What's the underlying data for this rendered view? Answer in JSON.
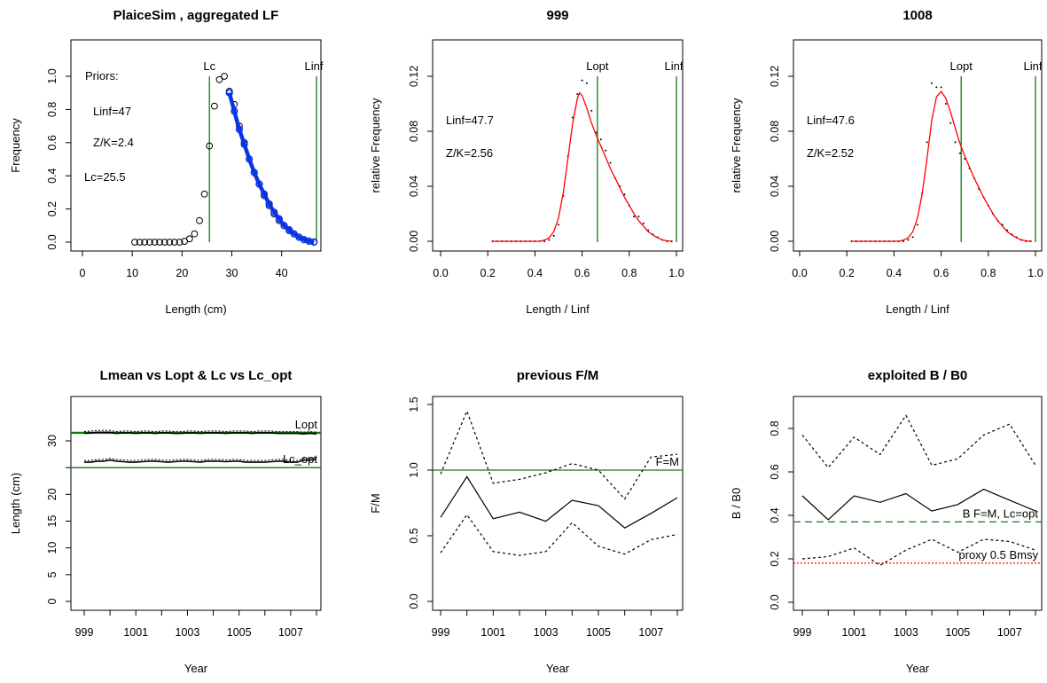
{
  "chart_data": [
    {
      "id": "lf",
      "type": "scatter",
      "title": "PlaiceSim , aggregated LF",
      "xlabel": "Length (cm)",
      "ylabel": "Frequency",
      "xlim": [
        0,
        47.5
      ],
      "ylim": [
        0,
        1.08
      ],
      "xticks": [
        0,
        10,
        20,
        30,
        40
      ],
      "yticks": [
        0.0,
        0.2,
        0.4,
        0.6,
        0.8,
        1.0
      ],
      "annotations": [
        "Priors:",
        "Linf=47",
        "Z/K=2.4",
        "Lc=25.5"
      ],
      "vlines": [
        {
          "x": 25.5,
          "label": "Lc"
        },
        {
          "x": 47,
          "label": "Linf"
        }
      ],
      "points": [
        [
          10.5,
          0
        ],
        [
          11.5,
          0
        ],
        [
          12.5,
          0
        ],
        [
          13.5,
          0
        ],
        [
          14.5,
          0
        ],
        [
          15.5,
          0
        ],
        [
          16.5,
          0
        ],
        [
          17.5,
          0
        ],
        [
          18.5,
          0
        ],
        [
          19.5,
          0
        ],
        [
          20.5,
          0.005
        ],
        [
          21.5,
          0.02
        ],
        [
          22.5,
          0.05
        ],
        [
          23.5,
          0.13
        ],
        [
          24.5,
          0.29
        ],
        [
          25.5,
          0.58
        ],
        [
          26.5,
          0.82
        ],
        [
          27.5,
          0.98
        ],
        [
          28.5,
          1.0
        ],
        [
          29.5,
          0.91
        ],
        [
          30.5,
          0.83
        ],
        [
          31.5,
          0.7
        ],
        [
          32.5,
          0.6
        ],
        [
          33.5,
          0.5
        ],
        [
          34.5,
          0.42
        ],
        [
          35.5,
          0.35
        ],
        [
          36.5,
          0.28
        ],
        [
          37.5,
          0.22
        ],
        [
          38.5,
          0.17
        ],
        [
          39.5,
          0.13
        ],
        [
          40.5,
          0.1
        ],
        [
          41.5,
          0.07
        ],
        [
          42.5,
          0.05
        ],
        [
          43.5,
          0.03
        ],
        [
          44.5,
          0.015
        ],
        [
          45.5,
          0.005
        ],
        [
          46.5,
          0.002
        ]
      ],
      "fit": [
        [
          29.5,
          0.9
        ],
        [
          30.5,
          0.79
        ],
        [
          31.5,
          0.68
        ],
        [
          32.5,
          0.59
        ],
        [
          33.5,
          0.5
        ],
        [
          34.5,
          0.42
        ],
        [
          35.5,
          0.35
        ],
        [
          36.5,
          0.29
        ],
        [
          37.5,
          0.23
        ],
        [
          38.5,
          0.18
        ],
        [
          39.5,
          0.14
        ],
        [
          40.5,
          0.1
        ],
        [
          41.5,
          0.075
        ],
        [
          42.5,
          0.05
        ],
        [
          43.5,
          0.03
        ],
        [
          44.5,
          0.015
        ],
        [
          45.5,
          0.006
        ],
        [
          46.5,
          0.0
        ]
      ]
    },
    {
      "id": "r999",
      "type": "line",
      "title": "999",
      "xlabel": "Length / Linf",
      "ylabel": "relative Frequency",
      "xlim": [
        -0.02,
        1.02
      ],
      "ylim": [
        -0.002,
        0.14
      ],
      "xticks": [
        0.0,
        0.2,
        0.4,
        0.6,
        0.8,
        1.0
      ],
      "yticks": [
        0.0,
        0.04,
        0.08,
        0.12
      ],
      "annotations": [
        "Linf=47.7",
        "Z/K=2.56"
      ],
      "vlines": [
        {
          "x": 0.665,
          "label": "Lopt"
        },
        {
          "x": 1.0,
          "label": "Linf"
        }
      ],
      "points": [
        [
          0.22,
          0
        ],
        [
          0.24,
          0
        ],
        [
          0.26,
          0
        ],
        [
          0.28,
          0
        ],
        [
          0.3,
          0
        ],
        [
          0.32,
          0
        ],
        [
          0.34,
          0
        ],
        [
          0.36,
          0
        ],
        [
          0.38,
          0
        ],
        [
          0.4,
          0
        ],
        [
          0.42,
          0
        ],
        [
          0.44,
          0
        ],
        [
          0.46,
          0.001
        ],
        [
          0.48,
          0.004
        ],
        [
          0.5,
          0.012
        ],
        [
          0.52,
          0.033
        ],
        [
          0.54,
          0.062
        ],
        [
          0.56,
          0.09
        ],
        [
          0.58,
          0.107
        ],
        [
          0.6,
          0.117
        ],
        [
          0.62,
          0.115
        ],
        [
          0.64,
          0.095
        ],
        [
          0.66,
          0.079
        ],
        [
          0.68,
          0.074
        ],
        [
          0.7,
          0.066
        ],
        [
          0.72,
          0.057
        ],
        [
          0.74,
          0.046
        ],
        [
          0.76,
          0.04
        ],
        [
          0.78,
          0.034
        ],
        [
          0.8,
          0.026
        ],
        [
          0.82,
          0.018
        ],
        [
          0.84,
          0.018
        ],
        [
          0.86,
          0.013
        ],
        [
          0.88,
          0.008
        ],
        [
          0.9,
          0.005
        ],
        [
          0.92,
          0.003
        ],
        [
          0.94,
          0.001
        ],
        [
          0.96,
          0
        ],
        [
          0.98,
          0
        ]
      ],
      "fit": [
        [
          0.22,
          0
        ],
        [
          0.3,
          0
        ],
        [
          0.38,
          0
        ],
        [
          0.42,
          0
        ],
        [
          0.44,
          0.0008
        ],
        [
          0.46,
          0.0025
        ],
        [
          0.48,
          0.007
        ],
        [
          0.5,
          0.017
        ],
        [
          0.52,
          0.035
        ],
        [
          0.54,
          0.06
        ],
        [
          0.56,
          0.086
        ],
        [
          0.58,
          0.104
        ],
        [
          0.59,
          0.108
        ],
        [
          0.6,
          0.106
        ],
        [
          0.62,
          0.097
        ],
        [
          0.64,
          0.086
        ],
        [
          0.66,
          0.077
        ],
        [
          0.68,
          0.069
        ],
        [
          0.7,
          0.061
        ],
        [
          0.72,
          0.053
        ],
        [
          0.74,
          0.046
        ],
        [
          0.76,
          0.039
        ],
        [
          0.78,
          0.032
        ],
        [
          0.8,
          0.026
        ],
        [
          0.82,
          0.02
        ],
        [
          0.84,
          0.015
        ],
        [
          0.86,
          0.011
        ],
        [
          0.88,
          0.007
        ],
        [
          0.9,
          0.0045
        ],
        [
          0.92,
          0.0025
        ],
        [
          0.94,
          0.001
        ],
        [
          0.96,
          0.0003
        ],
        [
          0.98,
          0
        ]
      ]
    },
    {
      "id": "r1008",
      "type": "line",
      "title": "1008",
      "xlabel": "Length / Linf",
      "ylabel": "relative Frequency",
      "xlim": [
        -0.02,
        1.02
      ],
      "ylim": [
        -0.002,
        0.14
      ],
      "xticks": [
        0.0,
        0.2,
        0.4,
        0.6,
        0.8,
        1.0
      ],
      "yticks": [
        0.0,
        0.04,
        0.08,
        0.12
      ],
      "annotations": [
        "Linf=47.6",
        "Z/K=2.52"
      ],
      "vlines": [
        {
          "x": 0.685,
          "label": "Lopt"
        },
        {
          "x": 1.0,
          "label": "Linf"
        }
      ],
      "points": [
        [
          0.22,
          0
        ],
        [
          0.24,
          0
        ],
        [
          0.26,
          0
        ],
        [
          0.28,
          0
        ],
        [
          0.3,
          0
        ],
        [
          0.32,
          0
        ],
        [
          0.34,
          0
        ],
        [
          0.36,
          0
        ],
        [
          0.38,
          0
        ],
        [
          0.4,
          0
        ],
        [
          0.42,
          0
        ],
        [
          0.44,
          0
        ],
        [
          0.46,
          0.001
        ],
        [
          0.48,
          0.003
        ],
        [
          0.5,
          0.012
        ],
        [
          0.52,
          0.035
        ],
        [
          0.54,
          0.072
        ],
        [
          0.56,
          0.115
        ],
        [
          0.58,
          0.112
        ],
        [
          0.6,
          0.112
        ],
        [
          0.62,
          0.1
        ],
        [
          0.64,
          0.086
        ],
        [
          0.66,
          0.072
        ],
        [
          0.68,
          0.064
        ],
        [
          0.7,
          0.06
        ],
        [
          0.72,
          0.053
        ],
        [
          0.74,
          0.046
        ],
        [
          0.76,
          0.038
        ],
        [
          0.78,
          0.032
        ],
        [
          0.8,
          0.026
        ],
        [
          0.82,
          0.02
        ],
        [
          0.84,
          0.015
        ],
        [
          0.86,
          0.012
        ],
        [
          0.88,
          0.008
        ],
        [
          0.9,
          0.005
        ],
        [
          0.92,
          0.003
        ],
        [
          0.94,
          0.001
        ],
        [
          0.96,
          0
        ],
        [
          0.98,
          0
        ]
      ],
      "fit": [
        [
          0.22,
          0
        ],
        [
          0.3,
          0
        ],
        [
          0.38,
          0
        ],
        [
          0.42,
          0
        ],
        [
          0.44,
          0.0008
        ],
        [
          0.46,
          0.0025
        ],
        [
          0.48,
          0.007
        ],
        [
          0.5,
          0.017
        ],
        [
          0.52,
          0.035
        ],
        [
          0.54,
          0.06
        ],
        [
          0.56,
          0.088
        ],
        [
          0.58,
          0.105
        ],
        [
          0.6,
          0.109
        ],
        [
          0.62,
          0.104
        ],
        [
          0.64,
          0.094
        ],
        [
          0.66,
          0.082
        ],
        [
          0.68,
          0.071
        ],
        [
          0.7,
          0.062
        ],
        [
          0.72,
          0.054
        ],
        [
          0.74,
          0.046
        ],
        [
          0.76,
          0.039
        ],
        [
          0.78,
          0.032
        ],
        [
          0.8,
          0.026
        ],
        [
          0.82,
          0.02
        ],
        [
          0.84,
          0.015
        ],
        [
          0.86,
          0.011
        ],
        [
          0.88,
          0.007
        ],
        [
          0.9,
          0.0045
        ],
        [
          0.92,
          0.0025
        ],
        [
          0.94,
          0.001
        ],
        [
          0.96,
          0.0003
        ],
        [
          0.98,
          0
        ]
      ]
    },
    {
      "id": "lmean",
      "type": "line",
      "title": "Lmean vs Lopt & Lc vs Lc_opt",
      "xlabel": "Year",
      "ylabel": "Length (cm)",
      "xlim": [
        998.7,
        1008.3
      ],
      "ylim": [
        -1,
        35
      ],
      "xticks": [
        999,
        1001,
        1003,
        1005,
        1007
      ],
      "yticks": [
        0,
        5,
        10,
        15,
        20,
        25,
        30
      ],
      "ytick_labels": [
        "0",
        "5",
        "10",
        "15",
        "20",
        "",
        "30"
      ],
      "hlines": [
        {
          "y": 31.5,
          "label": "Lopt"
        },
        {
          "y": 25.0,
          "label": "Lc_opt"
        }
      ],
      "x": [
        999,
        999.25,
        999.5,
        999.75,
        1000,
        1000.25,
        1000.5,
        1000.75,
        1001,
        1001.25,
        1001.5,
        1001.75,
        1002,
        1002.25,
        1002.5,
        1002.75,
        1003,
        1003.25,
        1003.5,
        1003.75,
        1004,
        1004.25,
        1004.5,
        1004.75,
        1005,
        1005.25,
        1005.5,
        1005.75,
        1006,
        1006.25,
        1006.5,
        1006.75,
        1007,
        1007.25,
        1007.5,
        1007.75,
        1008
      ],
      "series": [
        {
          "values": [
            31.4,
            31.5,
            31.6,
            31.6,
            31.6,
            31.4,
            31.5,
            31.5,
            31.4,
            31.5,
            31.5,
            31.4,
            31.5,
            31.5,
            31.4,
            31.4,
            31.5,
            31.5,
            31.4,
            31.5,
            31.5,
            31.5,
            31.4,
            31.5,
            31.5,
            31.5,
            31.4,
            31.5,
            31.5,
            31.5,
            31.4,
            31.4,
            31.4,
            31.4,
            31.3,
            31.4,
            31.3
          ]
        },
        {
          "values": [
            26.0,
            26.0,
            26.2,
            26.2,
            26.4,
            26.2,
            26.1,
            26.0,
            26.0,
            26.1,
            26.2,
            26.2,
            26.1,
            26.0,
            26.1,
            26.2,
            26.2,
            26.1,
            26.0,
            26.2,
            26.2,
            26.2,
            26.1,
            26.2,
            26.2,
            26.0,
            26.0,
            26.0,
            26.0,
            26.1,
            26.2,
            26.2,
            26.0,
            26.0,
            26.4,
            26.4,
            26.6
          ]
        }
      ]
    },
    {
      "id": "fm",
      "type": "line",
      "title": "previous F/M",
      "xlabel": "Year",
      "ylabel": "F/M",
      "xlim": [
        998.7,
        1008.3
      ],
      "ylim": [
        -0.02,
        1.52
      ],
      "xticks": [
        999,
        1001,
        1003,
        1005,
        1007
      ],
      "yticks": [
        0.0,
        0.5,
        1.0,
        1.5
      ],
      "hlines": [
        {
          "y": 1.0,
          "label": "F=M"
        }
      ],
      "x": [
        999,
        1000,
        1001,
        1002,
        1003,
        1004,
        1005,
        1006,
        1007,
        1008
      ],
      "series": [
        {
          "values": [
            0.97,
            1.45,
            0.9,
            0.93,
            0.98,
            1.05,
            1.0,
            0.78,
            1.1,
            1.12
          ]
        },
        {
          "values": [
            0.64,
            0.95,
            0.63,
            0.68,
            0.61,
            0.77,
            0.73,
            0.56,
            0.67,
            0.79
          ]
        },
        {
          "values": [
            0.37,
            0.66,
            0.38,
            0.35,
            0.38,
            0.6,
            0.42,
            0.36,
            0.47,
            0.51
          ]
        }
      ]
    },
    {
      "id": "bb0",
      "type": "line",
      "title": "exploited B / B0",
      "xlabel": "Year",
      "ylabel": "B / B0",
      "xlim": [
        998.7,
        1008.3
      ],
      "ylim": [
        -0.03,
        0.9
      ],
      "xticks": [
        999,
        1001,
        1003,
        1005,
        1007
      ],
      "yticks": [
        0.0,
        0.2,
        0.4,
        0.6,
        0.8
      ],
      "hlines": [
        {
          "y": 0.37,
          "label": "B F=M, Lc=opt"
        },
        {
          "y": 0.18,
          "label": "proxy 0.5 Bmsy"
        }
      ],
      "x": [
        999,
        1000,
        1001,
        1002,
        1003,
        1004,
        1005,
        1006,
        1007,
        1008
      ],
      "series": [
        {
          "values": [
            0.77,
            0.62,
            0.76,
            0.68,
            0.86,
            0.63,
            0.66,
            0.77,
            0.82,
            0.63
          ]
        },
        {
          "values": [
            0.49,
            0.38,
            0.49,
            0.46,
            0.5,
            0.42,
            0.45,
            0.52,
            0.47,
            0.42
          ]
        },
        {
          "values": [
            0.2,
            0.21,
            0.25,
            0.17,
            0.24,
            0.29,
            0.23,
            0.29,
            0.28,
            0.24
          ]
        }
      ]
    }
  ],
  "colors": {
    "green": "#117a11",
    "red": "#ff0000",
    "blue": "#0b33e6",
    "black": "#000000"
  }
}
